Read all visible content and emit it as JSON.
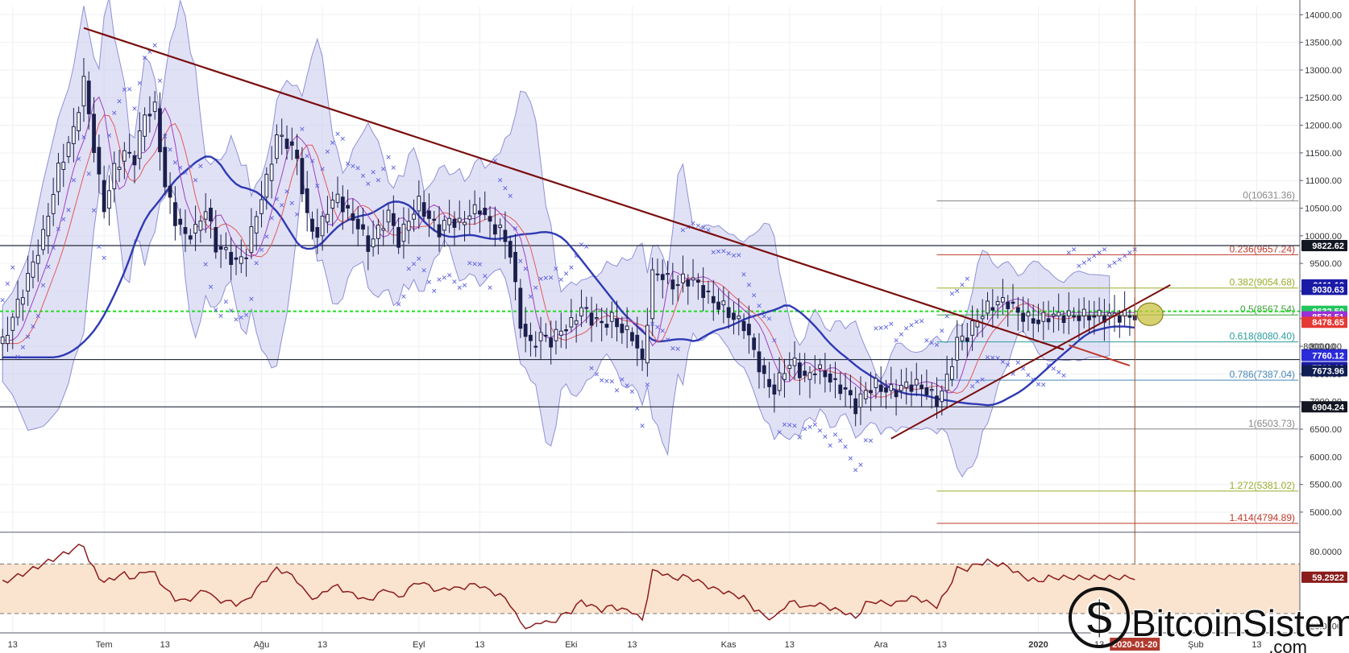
{
  "chart_data": [
    {
      "type": "candlestick",
      "title": "",
      "xlabel": "",
      "ylabel": "",
      "ylim": [
        4650,
        14150
      ],
      "y_ticks": [
        "14000.00",
        "13500.00",
        "13000.00",
        "12500.00",
        "12000.00",
        "11500.00",
        "11000.00",
        "10500.00",
        "10000.00",
        "9500.00",
        "9000.00",
        "8500.00",
        "8000.00",
        "7500.00",
        "7000.00",
        "6500.00",
        "6000.00",
        "5500.00",
        "5000.00"
      ],
      "x_ticks": [
        {
          "label": "13",
          "x_day": 0
        },
        {
          "label": "Tem",
          "x_day": 18
        },
        {
          "label": "13",
          "x_day": 30
        },
        {
          "label": "Ağu",
          "x_day": 49
        },
        {
          "label": "13",
          "x_day": 61
        },
        {
          "label": "Eyl",
          "x_day": 80
        },
        {
          "label": "13",
          "x_day": 92
        },
        {
          "label": "Eki",
          "x_day": 110
        },
        {
          "label": "13",
          "x_day": 122
        },
        {
          "label": "Kas",
          "x_day": 141
        },
        {
          "label": "13",
          "x_day": 153
        },
        {
          "label": "Ara",
          "x_day": 171
        },
        {
          "label": "13",
          "x_day": 183
        },
        {
          "label": "2020",
          "x_day": 202
        },
        {
          "label": "13",
          "x_day": 214
        },
        {
          "label": "Şub",
          "x_day": 233
        },
        {
          "label": "13",
          "x_day": 245
        }
      ],
      "x_range_days": [
        -2.5,
        253.5
      ],
      "cursor_date": "2020-01-20",
      "cursor_x_day": 221,
      "fib_levels": [
        {
          "label": "0(10631.36)",
          "value": 10631.36,
          "color": "#888888"
        },
        {
          "label": "0.236(9657.24)",
          "value": 9657.24,
          "color": "#c0392b"
        },
        {
          "label": "0.382(9054.68)",
          "value": 9054.68,
          "color": "#9aad2a"
        },
        {
          "label": "0.5(8567.54)",
          "value": 8567.54,
          "color": "#3a9e3a"
        },
        {
          "label": "0.618(8080.40)",
          "value": 8080.4,
          "color": "#2a9c9c"
        },
        {
          "label": "0.786(7387.04)",
          "value": 7387.04,
          "color": "#4a86b8"
        },
        {
          "label": "1(6503.73)",
          "value": 6503.73,
          "color": "#888888"
        },
        {
          "label": "1.272(5381.02)",
          "value": 5381.02,
          "color": "#9aad2a"
        },
        {
          "label": "1.414(4794.89)",
          "value": 4794.89,
          "color": "#c0392b"
        }
      ],
      "horizontal_lines": [
        9822.62,
        7760.12,
        6904.24
      ],
      "green_dashed_level": 8632.5,
      "price_tags": [
        {
          "text": "9822.62",
          "value": 9822.62,
          "bg": "#131722"
        },
        {
          "text": "9111.18",
          "value": 9111.18,
          "bg": "#1a1aa6"
        },
        {
          "text": "9030.63",
          "value": 9030.63,
          "bg": "#1a1aa6"
        },
        {
          "text": "8632.50",
          "value": 8632.5,
          "bg": "#22c55e"
        },
        {
          "text": "8576.51",
          "value": 8576.51,
          "bg": "#9b30d9"
        },
        {
          "text": "8478.65",
          "value": 8478.65,
          "bg": "#e53935"
        },
        {
          "text": "7846.12",
          "value": 7846.12,
          "bg": "#1a1aa6"
        },
        {
          "text": "7760.12",
          "value": 7760.12,
          "bg": "#2b2bd9"
        },
        {
          "text": "7760.12",
          "value": 7760.12,
          "bg": "#1a1aa6"
        },
        {
          "text": "7673.96",
          "value": 7673.96,
          "bg": "#101d52"
        },
        {
          "text": "6904.24",
          "value": 6904.24,
          "bg": "#131722"
        }
      ],
      "partial_tag": "8000.00",
      "downtrend_line": {
        "from": [
          14,
          13760
        ],
        "to": [
          207,
          7940
        ]
      },
      "red_segment": {
        "from": [
          208,
          8020
        ],
        "to": [
          220,
          7650
        ]
      },
      "uptrend_line": {
        "from": [
          173,
          6330
        ],
        "to": [
          228,
          9110
        ]
      },
      "highlight_ellipse": {
        "center": [
          224,
          8580
        ]
      },
      "bb_width": 1000,
      "close_points": [
        [
          -2,
          8050
        ],
        [
          2,
          9000
        ],
        [
          6,
          10000
        ],
        [
          9,
          11200
        ],
        [
          12,
          11900
        ],
        [
          14,
          12800
        ],
        [
          15,
          12200
        ],
        [
          17,
          11000
        ],
        [
          18,
          10500
        ],
        [
          20,
          11200
        ],
        [
          22,
          11500
        ],
        [
          24,
          11400
        ],
        [
          26,
          12200
        ],
        [
          28,
          12300
        ],
        [
          30,
          10900
        ],
        [
          32,
          10300
        ],
        [
          34,
          10000
        ],
        [
          36,
          10100
        ],
        [
          38,
          10500
        ],
        [
          40,
          9800
        ],
        [
          42,
          9700
        ],
        [
          44,
          9500
        ],
        [
          46,
          9700
        ],
        [
          48,
          10400
        ],
        [
          50,
          11000
        ],
        [
          52,
          11800
        ],
        [
          54,
          11700
        ],
        [
          56,
          11400
        ],
        [
          58,
          10300
        ],
        [
          60,
          10000
        ],
        [
          62,
          10500
        ],
        [
          64,
          10700
        ],
        [
          66,
          10400
        ],
        [
          68,
          10200
        ],
        [
          70,
          9800
        ],
        [
          72,
          10100
        ],
        [
          74,
          10400
        ],
        [
          76,
          9900
        ],
        [
          78,
          10300
        ],
        [
          80,
          10600
        ],
        [
          82,
          10300
        ],
        [
          84,
          10100
        ],
        [
          86,
          10300
        ],
        [
          88,
          10200
        ],
        [
          90,
          10400
        ],
        [
          92,
          10500
        ],
        [
          94,
          10200
        ],
        [
          96,
          10100
        ],
        [
          98,
          9700
        ],
        [
          100,
          8400
        ],
        [
          102,
          8000
        ],
        [
          104,
          8200
        ],
        [
          106,
          8100
        ],
        [
          108,
          8300
        ],
        [
          110,
          8400
        ],
        [
          112,
          8700
        ],
        [
          114,
          8500
        ],
        [
          116,
          8400
        ],
        [
          118,
          8500
        ],
        [
          120,
          8300
        ],
        [
          122,
          8200
        ],
        [
          124,
          7700
        ],
        [
          126,
          9300
        ],
        [
          128,
          9300
        ],
        [
          130,
          9100
        ],
        [
          132,
          9200
        ],
        [
          134,
          9200
        ],
        [
          136,
          9000
        ],
        [
          138,
          8800
        ],
        [
          140,
          8700
        ],
        [
          142,
          8500
        ],
        [
          144,
          8400
        ],
        [
          146,
          7900
        ],
        [
          148,
          7400
        ],
        [
          150,
          7200
        ],
        [
          152,
          7600
        ],
        [
          154,
          7700
        ],
        [
          156,
          7400
        ],
        [
          158,
          7600
        ],
        [
          160,
          7500
        ],
        [
          162,
          7300
        ],
        [
          164,
          7200
        ],
        [
          166,
          6900
        ],
        [
          168,
          7200
        ],
        [
          170,
          7300
        ],
        [
          172,
          7200
        ],
        [
          174,
          7200
        ],
        [
          176,
          7300
        ],
        [
          178,
          7300
        ],
        [
          180,
          7200
        ],
        [
          182,
          7000
        ],
        [
          184,
          7400
        ],
        [
          186,
          8100
        ],
        [
          188,
          8200
        ],
        [
          190,
          8500
        ],
        [
          192,
          8700
        ],
        [
          194,
          8800
        ],
        [
          196,
          8800
        ],
        [
          198,
          8600
        ],
        [
          200,
          8500
        ],
        [
          202,
          8450
        ],
        [
          204,
          8550
        ]
      ],
      "ma_red_offset": 3,
      "ma_purple_offset": 2,
      "ma_blue_offset": 10
    },
    {
      "type": "line",
      "title": "",
      "ylim": [
        15,
        95
      ],
      "y_ticks": [
        "80.0000",
        "20.0000"
      ],
      "bands": [
        70,
        30
      ],
      "last_value_tag": "59.2922",
      "series": [
        {
          "values": [
            [
              -2,
              55
            ],
            [
              2,
              62
            ],
            [
              6,
              70
            ],
            [
              9,
              76
            ],
            [
              12,
              82
            ],
            [
              14,
              86
            ],
            [
              15,
              72
            ],
            [
              17,
              60
            ],
            [
              18,
              55
            ],
            [
              20,
              59
            ],
            [
              22,
              62
            ],
            [
              24,
              58
            ],
            [
              26,
              65
            ],
            [
              28,
              62
            ],
            [
              30,
              50
            ],
            [
              32,
              42
            ],
            [
              34,
              40
            ],
            [
              36,
              44
            ],
            [
              38,
              50
            ],
            [
              40,
              41
            ],
            [
              42,
              40
            ],
            [
              44,
              38
            ],
            [
              46,
              40
            ],
            [
              48,
              50
            ],
            [
              50,
              58
            ],
            [
              52,
              66
            ],
            [
              54,
              63
            ],
            [
              56,
              57
            ],
            [
              58,
              45
            ],
            [
              60,
              42
            ],
            [
              62,
              50
            ],
            [
              64,
              52
            ],
            [
              66,
              47
            ],
            [
              68,
              44
            ],
            [
              70,
              40
            ],
            [
              72,
              46
            ],
            [
              74,
              50
            ],
            [
              76,
              42
            ],
            [
              78,
              50
            ],
            [
              80,
              56
            ],
            [
              82,
              52
            ],
            [
              84,
              48
            ],
            [
              86,
              51
            ],
            [
              88,
              50
            ],
            [
              90,
              53
            ],
            [
              92,
              53
            ],
            [
              94,
              48
            ],
            [
              96,
              45
            ],
            [
              98,
              38
            ],
            [
              100,
              22
            ],
            [
              102,
              18
            ],
            [
              104,
              24
            ],
            [
              106,
              22
            ],
            [
              108,
              28
            ],
            [
              110,
              32
            ],
            [
              112,
              40
            ],
            [
              114,
              36
            ],
            [
              116,
              33
            ],
            [
              118,
              36
            ],
            [
              120,
              33
            ],
            [
              122,
              32
            ],
            [
              124,
              24
            ],
            [
              126,
              64
            ],
            [
              128,
              63
            ],
            [
              130,
              58
            ],
            [
              132,
              60
            ],
            [
              134,
              58
            ],
            [
              136,
              54
            ],
            [
              138,
              50
            ],
            [
              140,
              48
            ],
            [
              142,
              45
            ],
            [
              144,
              43
            ],
            [
              146,
              34
            ],
            [
              148,
              28
            ],
            [
              150,
              26
            ],
            [
              152,
              36
            ],
            [
              154,
              40
            ],
            [
              156,
              34
            ],
            [
              158,
              38
            ],
            [
              160,
              36
            ],
            [
              162,
              33
            ],
            [
              164,
              31
            ],
            [
              166,
              26
            ],
            [
              168,
              38
            ],
            [
              170,
              40
            ],
            [
              172,
              38
            ],
            [
              174,
              38
            ],
            [
              176,
              42
            ],
            [
              178,
              43
            ],
            [
              180,
              39
            ],
            [
              182,
              36
            ],
            [
              184,
              48
            ],
            [
              186,
              66
            ],
            [
              188,
              66
            ],
            [
              190,
              70
            ],
            [
              192,
              72
            ],
            [
              194,
              70
            ],
            [
              196,
              68
            ],
            [
              198,
              62
            ],
            [
              200,
              58
            ],
            [
              202,
              56
            ],
            [
              204,
              59
            ]
          ]
        }
      ]
    }
  ],
  "watermark": {
    "brand": "BitcoinSistemi",
    "domain": ".com",
    "colors": {
      "text": "#111111",
      "stroke": "#ffffff"
    }
  },
  "colors": {
    "up": "#ffffff",
    "down": "#1b1f4b",
    "wick": "#1b1f4b",
    "bb_fill": "#c8c9ee",
    "bb_edge": "#8e90d6",
    "ma_blue": "#2e3ab3",
    "ma_red": "#e05a5a",
    "ma_purple": "#a040c0",
    "psar": "#5b5fe0",
    "downtrend": "#7a0e0e",
    "rsi_line": "#8b1c1c",
    "rsi_band": "#fbe4cf",
    "green_dash": "#22dd22",
    "cursor": "#a0522d",
    "ellipse_fill": "#c9c240",
    "ellipse_edge": "#8a8420",
    "grid": "#eef0f3",
    "axis_bg": "#ffffff"
  }
}
